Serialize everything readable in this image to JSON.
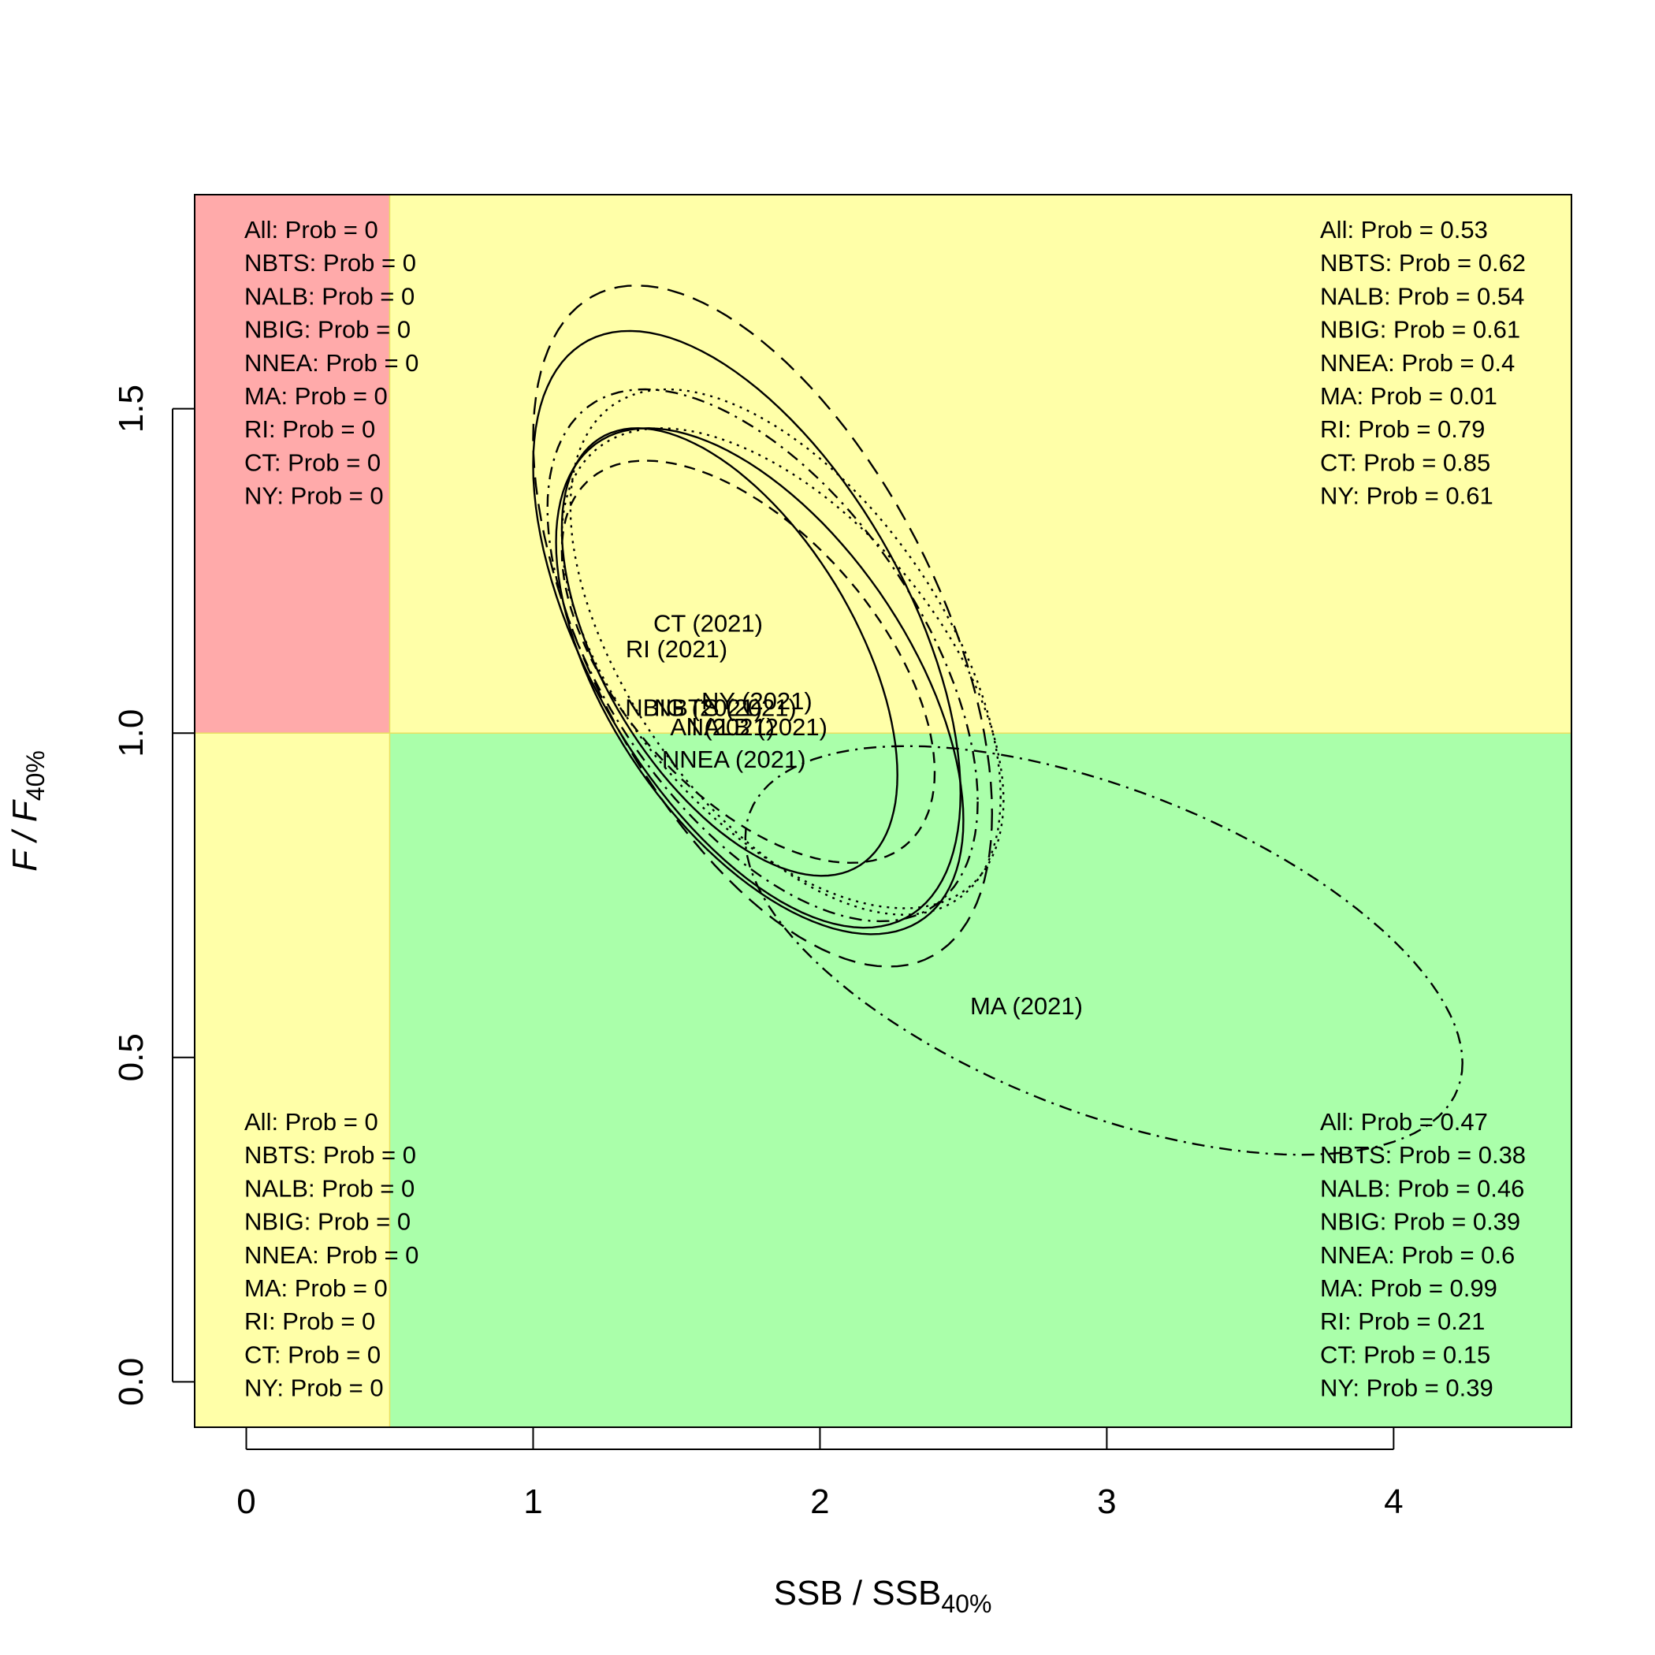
{
  "chart_data": {
    "type": "scatter",
    "xlim": [
      -0.18,
      4.62
    ],
    "ylim": [
      -0.07,
      1.83
    ],
    "x_ticks": [
      0,
      1,
      2,
      3,
      4
    ],
    "y_ticks": [
      0.0,
      0.5,
      1.0,
      1.5
    ],
    "x_tick_labels": [
      "0",
      "1",
      "2",
      "3",
      "4"
    ],
    "y_tick_labels": [
      "0.0",
      "0.5",
      "1.0",
      "1.5"
    ],
    "xlabel": {
      "main": "SSB / SSB",
      "sub": "40%"
    },
    "ylabel": {
      "main": "F / F",
      "sub": "40%"
    },
    "reference": {
      "x": 0.5,
      "y": 1.0
    },
    "colors": {
      "red_zone": "#ffaaaa",
      "yellow_zone": "#ffffa8",
      "green_zone": "#aaffaa",
      "frame": "#000000"
    },
    "quadrants": {
      "top_left": [
        "All: Prob = 0",
        "NBTS: Prob = 0",
        "NALB: Prob = 0",
        "NBIG: Prob = 0",
        "NNEA: Prob = 0",
        "MA: Prob = 0",
        "RI: Prob = 0",
        "CT: Prob = 0",
        "NY: Prob = 0"
      ],
      "top_right": [
        "All: Prob = 0.53",
        "NBTS: Prob = 0.62",
        "NALB: Prob = 0.54",
        "NBIG: Prob = 0.61",
        "NNEA: Prob = 0.4",
        "MA: Prob = 0.01",
        "RI: Prob = 0.79",
        "CT: Prob = 0.85",
        "NY: Prob = 0.61"
      ],
      "bottom_left": [
        "All: Prob = 0",
        "NBTS: Prob = 0",
        "NALB: Prob = 0",
        "NBIG: Prob = 0",
        "NNEA: Prob = 0",
        "MA: Prob = 0",
        "RI: Prob = 0",
        "CT: Prob = 0",
        "NY: Prob = 0"
      ],
      "bottom_right": [
        "All: Prob = 0.47",
        "NBTS: Prob = 0.38",
        "NALB: Prob = 0.46",
        "NBIG: Prob = 0.39",
        "NNEA: Prob = 0.6",
        "MA: Prob = 0.99",
        "RI: Prob = 0.21",
        "CT: Prob = 0.15",
        "NY: Prob = 0.39"
      ]
    },
    "series": [
      {
        "label": "All (2021)",
        "x": 1.66,
        "y": 1.01,
        "xmin": 1.08,
        "xmax": 2.5,
        "ymin": 0.69,
        "ymax": 1.47,
        "dash": "solid"
      },
      {
        "label": "NBTS (2021)",
        "x": 1.67,
        "y": 1.04,
        "xmin": 1.0,
        "xmax": 2.6,
        "ymin": 0.64,
        "ymax": 1.69,
        "dash": "longdash"
      },
      {
        "label": "NALB (2021)",
        "x": 1.78,
        "y": 1.01,
        "xmin": 1.0,
        "xmax": 2.49,
        "ymin": 0.7,
        "ymax": 1.62,
        "dash": "solid"
      },
      {
        "label": "NBIG (2021)",
        "x": 1.56,
        "y": 1.04,
        "xmin": 1.05,
        "xmax": 2.55,
        "ymin": 0.71,
        "ymax": 1.53,
        "dash": "dashdot"
      },
      {
        "label": "NNEA (2021)",
        "x": 1.7,
        "y": 0.96,
        "xmin": 1.1,
        "xmax": 2.4,
        "ymin": 0.8,
        "ymax": 1.42,
        "dash": "dashed"
      },
      {
        "label": "MA (2021)",
        "x": 2.72,
        "y": 0.58,
        "xmin": 1.74,
        "xmax": 4.24,
        "ymin": 0.35,
        "ymax": 0.98,
        "dash": "dashdot"
      },
      {
        "label": "RI (2021)",
        "x": 1.5,
        "y": 1.13,
        "xmin": 1.1,
        "xmax": 2.27,
        "ymin": 0.78,
        "ymax": 1.47,
        "dash": "solid"
      },
      {
        "label": "CT (2021)",
        "x": 1.61,
        "y": 1.17,
        "xmin": 1.13,
        "xmax": 2.63,
        "ymin": 0.72,
        "ymax": 1.53,
        "dash": "dotted"
      },
      {
        "label": "NY (2021)",
        "x": 1.78,
        "y": 1.05,
        "xmin": 1.1,
        "xmax": 2.64,
        "ymin": 0.73,
        "ymax": 1.47,
        "dash": "dotted"
      }
    ]
  }
}
